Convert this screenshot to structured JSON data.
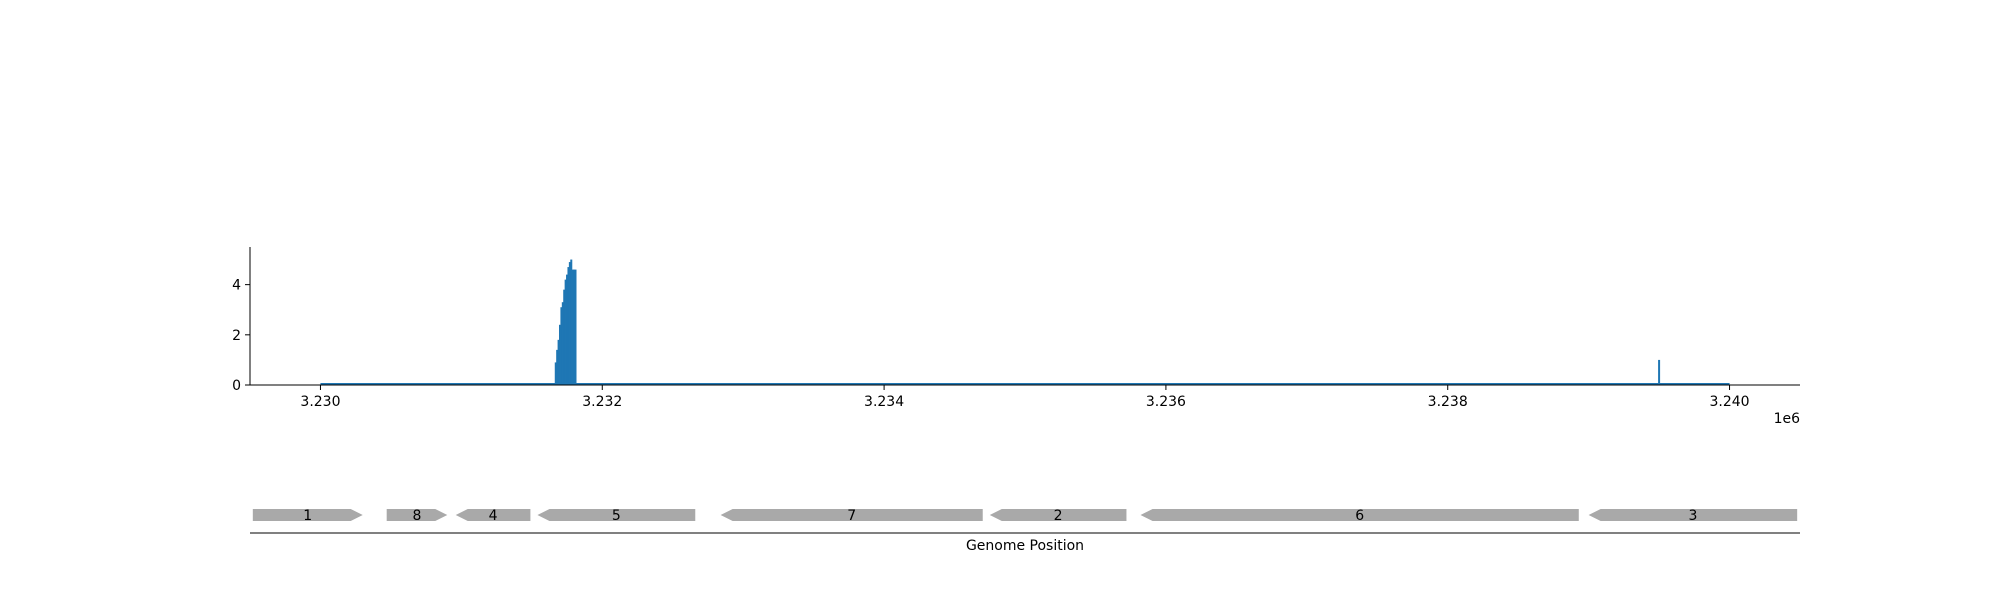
{
  "chart_data": [
    {
      "type": "bar",
      "title": "",
      "xlabel": "",
      "ylabel": "",
      "xlim": [
        3229500,
        3240500
      ],
      "ylim": [
        0,
        5.5
      ],
      "x_offset_label": "1e6",
      "xticks": [
        3230000,
        3232000,
        3234000,
        3236000,
        3238000,
        3240000
      ],
      "xtick_labels": [
        "3.230",
        "3.232",
        "3.234",
        "3.236",
        "3.238",
        "3.240"
      ],
      "yticks": [
        0,
        2,
        4
      ],
      "ytick_labels": [
        "0",
        "2",
        "4"
      ],
      "baseline": [
        3230000,
        3240000
      ],
      "color": "#1f77b4",
      "grid": false,
      "x": [
        3231670,
        3231680,
        3231690,
        3231700,
        3231710,
        3231720,
        3231730,
        3231740,
        3231750,
        3231760,
        3231770,
        3231780,
        3231790,
        3231800,
        3231810,
        3239500
      ],
      "values": [
        0.9,
        1.4,
        1.8,
        2.4,
        3.1,
        3.3,
        3.8,
        4.2,
        4.4,
        4.7,
        4.9,
        5.0,
        4.6,
        4.6,
        4.6,
        1.0
      ]
    },
    {
      "type": "gene_map",
      "xlabel": "Genome Position",
      "xlim": [
        3229500,
        3240500
      ],
      "color": "#a9a9a9",
      "genes": [
        {
          "label": "1",
          "start": 3229520,
          "end": 3230300,
          "strand": "+"
        },
        {
          "label": "8",
          "start": 3230470,
          "end": 3230900,
          "strand": "+"
        },
        {
          "label": "4",
          "start": 3230960,
          "end": 3231490,
          "strand": "-"
        },
        {
          "label": "5",
          "start": 3231540,
          "end": 3232660,
          "strand": "-"
        },
        {
          "label": "7",
          "start": 3232840,
          "end": 3234700,
          "strand": "-"
        },
        {
          "label": "2",
          "start": 3234750,
          "end": 3235720,
          "strand": "-"
        },
        {
          "label": "6",
          "start": 3235820,
          "end": 3238930,
          "strand": "-"
        },
        {
          "label": "3",
          "start": 3239000,
          "end": 3240480,
          "strand": "-"
        }
      ]
    }
  ]
}
